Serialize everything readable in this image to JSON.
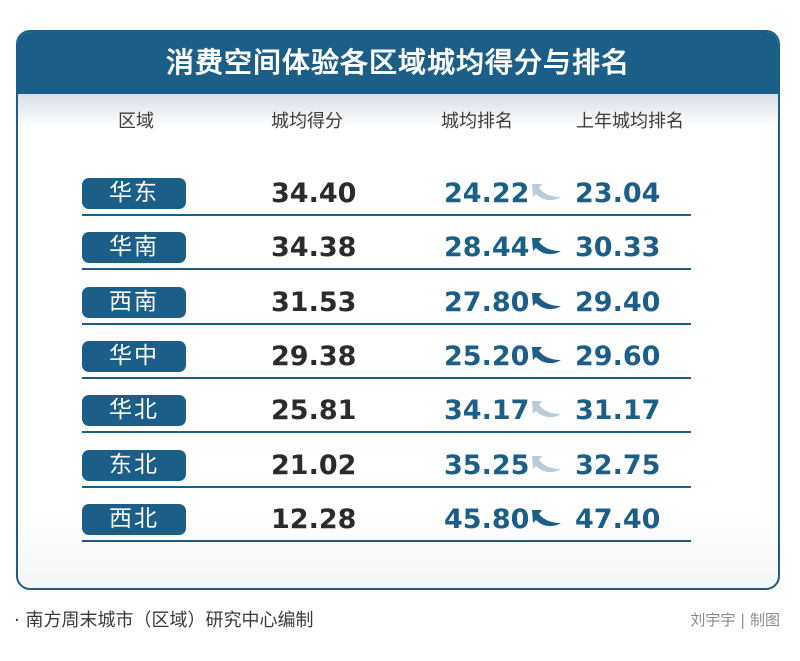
{
  "chart_data": {
    "type": "table",
    "title": "消费空间体验各区域城均得分与排名",
    "columns": [
      "区域",
      "城均得分",
      "城均排名",
      "上年城均排名"
    ],
    "rows": [
      {
        "region": "华东",
        "score": "34.40",
        "rank": "24.22",
        "prev_rank": "23.04",
        "trend": "down"
      },
      {
        "region": "华南",
        "score": "34.38",
        "rank": "28.44",
        "prev_rank": "30.33",
        "trend": "up"
      },
      {
        "region": "西南",
        "score": "31.53",
        "rank": "27.80",
        "prev_rank": "29.40",
        "trend": "up"
      },
      {
        "region": "华中",
        "score": "29.38",
        "rank": "25.20",
        "prev_rank": "29.60",
        "trend": "up"
      },
      {
        "region": "华北",
        "score": "25.81",
        "rank": "34.17",
        "prev_rank": "31.17",
        "trend": "down"
      },
      {
        "region": "东北",
        "score": "21.02",
        "rank": "35.25",
        "prev_rank": "32.75",
        "trend": "down"
      },
      {
        "region": "西北",
        "score": "12.28",
        "rank": "45.80",
        "prev_rank": "47.40",
        "trend": "up"
      }
    ]
  },
  "footer": {
    "source": "· 南方周末城市（区域）研究中心编制",
    "credit": "刘宇宇 | 制图"
  },
  "colors": {
    "accent": "#1b5f88",
    "arrow_up": "#1b5f88",
    "arrow_down": "#b9cbd8"
  },
  "icons": {
    "up": "curved-arrow-up-icon",
    "down": "curved-arrow-down-icon"
  }
}
